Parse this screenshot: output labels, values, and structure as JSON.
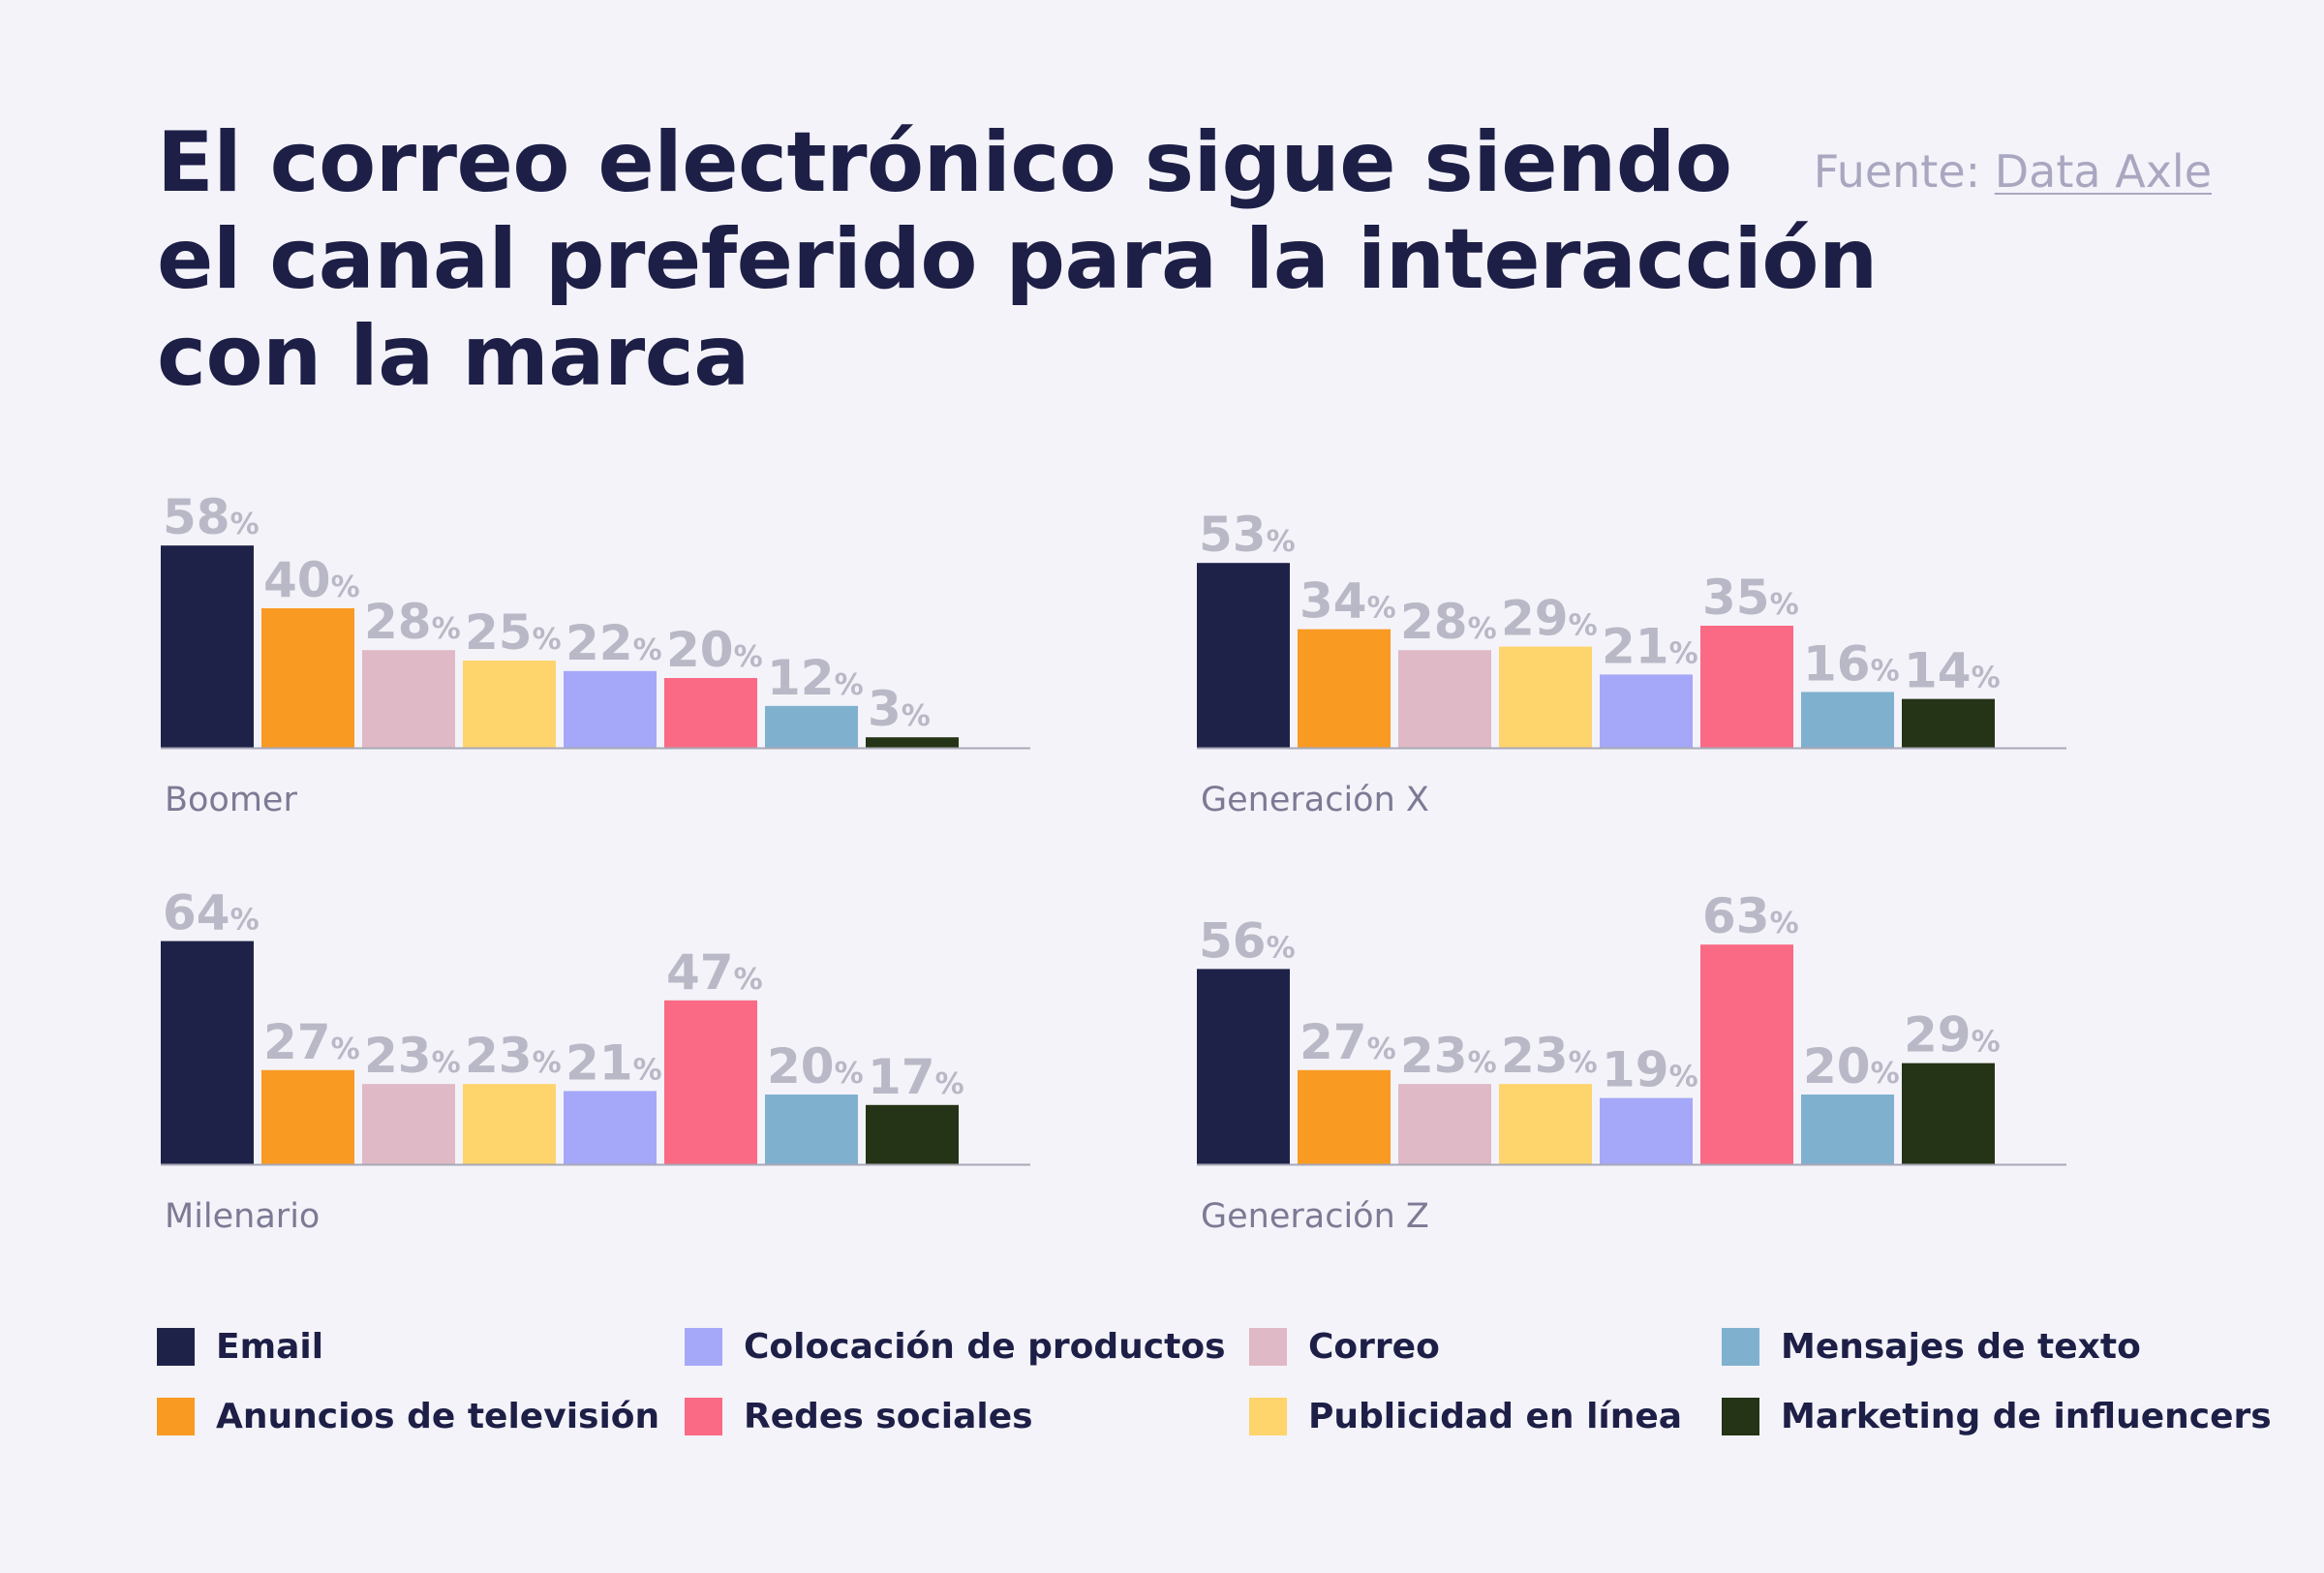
{
  "title_lines": [
    "El correo electrónico sigue siendo",
    "el canal preferido para la interacción",
    "con la marca"
  ],
  "source": {
    "prefix": "Fuente: ",
    "link": "Data Axle"
  },
  "colors": {
    "email": "#1f2248",
    "tv": "#f99a22",
    "correo": "#dfb9c5",
    "online": "#fed46c",
    "product": "#a5a7f8",
    "social": "#fa6a84",
    "text": "#7fb1cf",
    "influencer": "#253316"
  },
  "legend": [
    {
      "key": "email",
      "label": "Email"
    },
    {
      "key": "tv",
      "label": "Anuncios de televisión"
    },
    {
      "key": "product",
      "label": "Colocación de productos"
    },
    {
      "key": "social",
      "label": "Redes sociales"
    },
    {
      "key": "correo",
      "label": "Correo"
    },
    {
      "key": "online",
      "label": "Publicidad en línea"
    },
    {
      "key": "text",
      "label": "Mensajes de texto"
    },
    {
      "key": "influencer",
      "label": "Marketing de influencers"
    }
  ],
  "chart_data": [
    {
      "type": "bar",
      "label": "Boomer",
      "unit": "%",
      "series_order": [
        "email",
        "tv",
        "correo",
        "online",
        "product",
        "social",
        "text",
        "influencer"
      ],
      "values": [
        58,
        40,
        28,
        25,
        22,
        20,
        12,
        3
      ]
    },
    {
      "type": "bar",
      "label": "Generación X",
      "unit": "%",
      "series_order": [
        "email",
        "tv",
        "correo",
        "online",
        "product",
        "social",
        "text",
        "influencer"
      ],
      "values": [
        53,
        34,
        28,
        29,
        21,
        35,
        16,
        14
      ]
    },
    {
      "type": "bar",
      "label": "Milenario",
      "unit": "%",
      "series_order": [
        "email",
        "tv",
        "correo",
        "online",
        "product",
        "social",
        "text",
        "influencer"
      ],
      "values": [
        64,
        27,
        23,
        23,
        21,
        47,
        20,
        17
      ]
    },
    {
      "type": "bar",
      "label": "Generación Z",
      "unit": "%",
      "series_order": [
        "email",
        "tv",
        "correo",
        "online",
        "product",
        "social",
        "text",
        "influencer"
      ],
      "values": [
        56,
        27,
        23,
        23,
        19,
        63,
        20,
        29
      ]
    }
  ]
}
